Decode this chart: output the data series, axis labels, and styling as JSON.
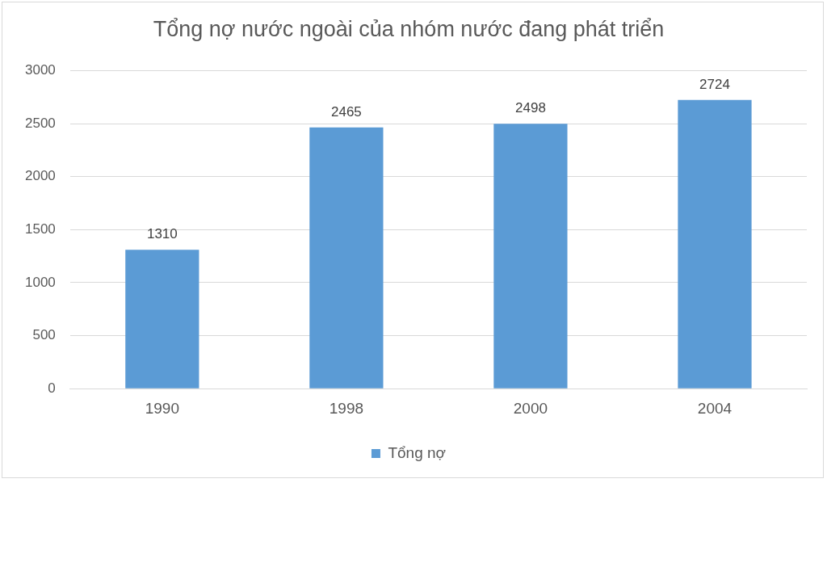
{
  "chart_data": {
    "type": "bar",
    "title": "Tổng nợ nước ngoài của nhóm nước đang phát triển",
    "categories": [
      "1990",
      "1998",
      "2000",
      "2004"
    ],
    "series": [
      {
        "name": "Tổng nợ",
        "color": "#5b9bd5",
        "values": [
          1310,
          2465,
          2498,
          2724
        ]
      }
    ],
    "ylim": [
      0,
      3000
    ],
    "yticks": [
      0,
      500,
      1000,
      1500,
      2000,
      2500,
      3000
    ],
    "grid": "y",
    "legend": "bottom",
    "data_labels": true
  }
}
